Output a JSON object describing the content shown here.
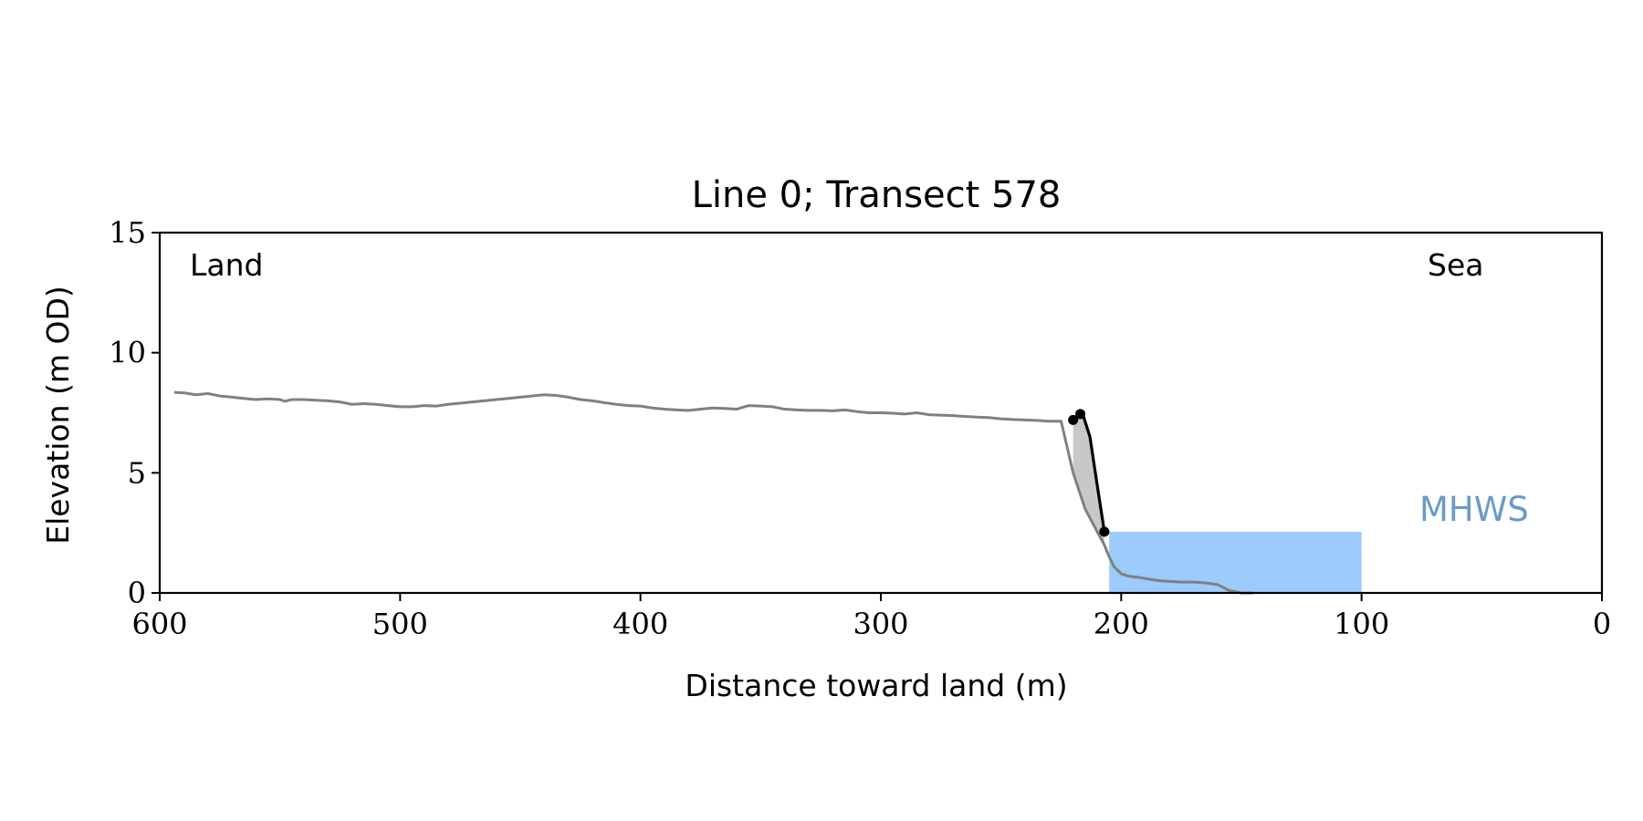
{
  "chart_data": {
    "type": "line",
    "title": "Line 0; Transect 578",
    "xlabel": "Distance toward land (m)",
    "ylabel": "Elevation (m OD)",
    "xlim": [
      600,
      0
    ],
    "ylim": [
      0,
      15
    ],
    "x_inverted": true,
    "xticks": [
      600,
      500,
      400,
      300,
      200,
      100,
      0
    ],
    "yticks": [
      0,
      5,
      10,
      15
    ],
    "grid": false,
    "annotations": {
      "land": "Land",
      "sea": "Sea",
      "mhws": "MHWS"
    },
    "mhws": {
      "level": 2.55,
      "x_range": [
        205,
        100
      ],
      "color": "#9ccbfc",
      "label_color": "#6a9ac9"
    },
    "colors": {
      "profile": "#808080",
      "cliff": "#000000",
      "cliff_fill": "#c8c8c8"
    },
    "series": [
      {
        "x": [
          594,
          590,
          585,
          580,
          575,
          570,
          565,
          560,
          555,
          550,
          548,
          545,
          540,
          535,
          530,
          525,
          520,
          515,
          510,
          505,
          500,
          495,
          490,
          485,
          480,
          475,
          470,
          465,
          460,
          455,
          450,
          445,
          440,
          435,
          430,
          425,
          420,
          415,
          410,
          405,
          400,
          395,
          390,
          385,
          380,
          375,
          370,
          365,
          360,
          355,
          350,
          345,
          340,
          335,
          330,
          325,
          320,
          315,
          310,
          305,
          300,
          295,
          290,
          285,
          280,
          275,
          270,
          265,
          260,
          255,
          250,
          245,
          240,
          235,
          230,
          225,
          220,
          215,
          210,
          207,
          205,
          203,
          200,
          197,
          193,
          190,
          187,
          183,
          180,
          175,
          170,
          165,
          160,
          155,
          150,
          145
        ],
        "y": [
          8.35,
          8.33,
          8.25,
          8.3,
          8.2,
          8.15,
          8.1,
          8.05,
          8.08,
          8.05,
          7.98,
          8.05,
          8.05,
          8.02,
          8.0,
          7.95,
          7.85,
          7.88,
          7.85,
          7.8,
          7.75,
          7.75,
          7.8,
          7.78,
          7.85,
          7.9,
          7.95,
          8.0,
          8.05,
          8.1,
          8.15,
          8.2,
          8.25,
          8.22,
          8.15,
          8.05,
          8.0,
          7.92,
          7.85,
          7.8,
          7.78,
          7.7,
          7.65,
          7.62,
          7.6,
          7.65,
          7.7,
          7.68,
          7.65,
          7.8,
          7.78,
          7.75,
          7.65,
          7.62,
          7.6,
          7.6,
          7.58,
          7.62,
          7.55,
          7.5,
          7.5,
          7.48,
          7.45,
          7.5,
          7.42,
          7.4,
          7.38,
          7.35,
          7.32,
          7.3,
          7.25,
          7.22,
          7.2,
          7.18,
          7.15,
          7.15,
          5.0,
          3.5,
          2.55,
          2.0,
          1.5,
          1.1,
          0.8,
          0.7,
          0.65,
          0.6,
          0.55,
          0.5,
          0.48,
          0.45,
          0.45,
          0.42,
          0.35,
          0.1,
          0.0,
          0.0
        ]
      },
      {
        "x": [
          220,
          218,
          216,
          213,
          210,
          207
        ],
        "y": [
          7.2,
          7.3,
          7.45,
          6.5,
          4.5,
          2.55
        ]
      }
    ],
    "markers": [
      {
        "x": 220,
        "y": 7.2
      },
      {
        "x": 217,
        "y": 7.45
      },
      {
        "x": 207,
        "y": 2.55
      }
    ]
  }
}
